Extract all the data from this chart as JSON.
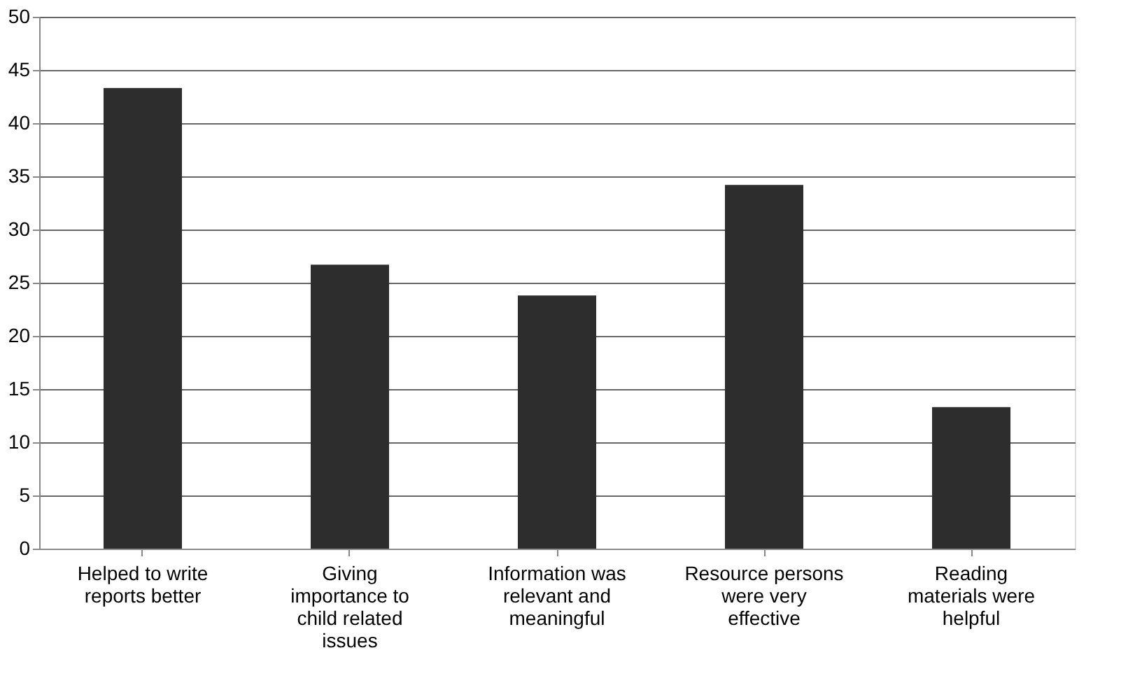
{
  "chart_data": {
    "type": "bar",
    "categories": [
      "Helped to write reports better",
      "Giving importance to child related issues",
      "Information was relevant and meaningful",
      "Resource persons were very effective",
      "Reading materials were helpful"
    ],
    "values": [
      43.3,
      26.7,
      23.8,
      34.2,
      13.3
    ],
    "color": "#2d2d2d",
    "ylim": [
      0,
      50
    ],
    "yticks": [
      0,
      5,
      10,
      15,
      20,
      25,
      30,
      35,
      40,
      45,
      50
    ],
    "grid": "y"
  }
}
